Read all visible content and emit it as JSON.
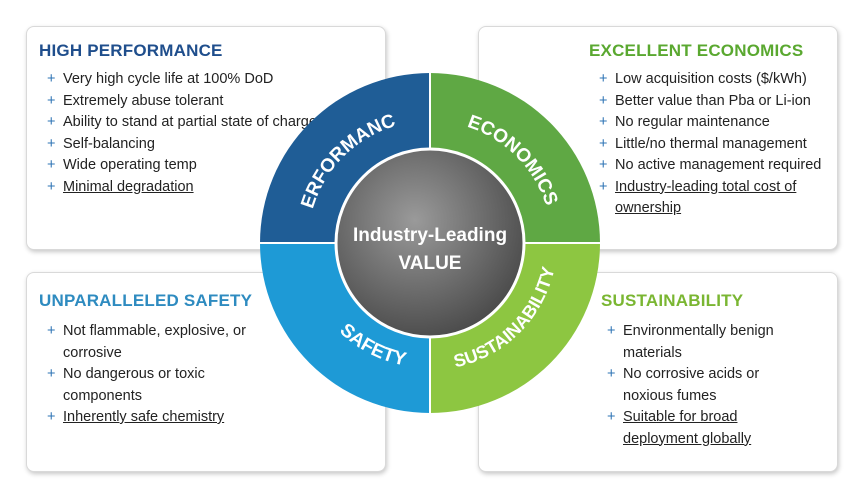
{
  "performance": {
    "title": "HIGH PERFORMANCE",
    "items": [
      {
        "text": "Very high cycle life at 100% DoD"
      },
      {
        "text": "Extremely abuse tolerant"
      },
      {
        "text": "Ability to stand at partial state of charge"
      },
      {
        "text": "Self-balancing"
      },
      {
        "text": "Wide operating temp"
      },
      {
        "text": "Minimal degradation"
      }
    ]
  },
  "economics": {
    "title": "EXCELLENT ECONOMICS",
    "items": [
      {
        "text": "Low acquisition costs ($/kWh)"
      },
      {
        "text": "Better value than Pba or Li-ion"
      },
      {
        "text": "No regular maintenance"
      },
      {
        "text": "Little/no thermal management"
      },
      {
        "text": "No active management required"
      },
      {
        "text": "Industry-leading total cost of ownership"
      }
    ]
  },
  "safety": {
    "title": "UNPARALLELED SAFETY",
    "items": [
      {
        "text": "Not flammable, explosive, or corrosive"
      },
      {
        "text": "No dangerous or toxic components"
      },
      {
        "text": "Inherently safe chemistry"
      }
    ]
  },
  "sustainability": {
    "title": "SUSTAINABILITY",
    "items": [
      {
        "text": "Environmentally benign materials"
      },
      {
        "text": "No corrosive acids or noxious fumes"
      },
      {
        "text": "Suitable for broad deployment globally"
      }
    ]
  },
  "bullet_symbol": "+",
  "wheel": {
    "segments": {
      "performance": {
        "label": "PERFORMANCE",
        "color": "#1f5d96"
      },
      "economics": {
        "label": "ECONOMICS",
        "color": "#5fa844"
      },
      "safety": {
        "label": "SAFETY",
        "color": "#1e9ad6"
      },
      "sustainability": {
        "label": "SUSTAINABILITY",
        "color": "#8dc641"
      }
    },
    "center_line1": "Industry-Leading",
    "center_line2": "VALUE"
  }
}
